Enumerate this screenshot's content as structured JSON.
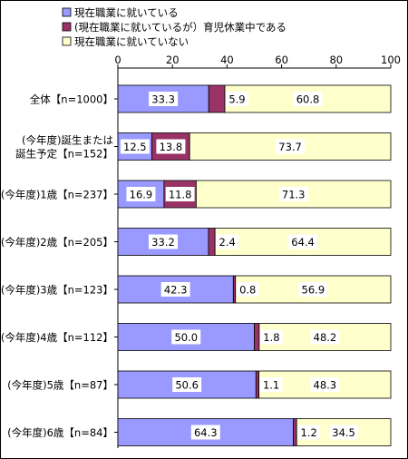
{
  "chart_data": {
    "type": "bar",
    "stacked": true,
    "orientation": "horizontal",
    "xlim": [
      0,
      100
    ],
    "x_ticks": [
      "0",
      "20",
      "40",
      "60",
      "80",
      "100"
    ],
    "categories": [
      "全体【n=1000】",
      "(今年度)誕生または\n誕生予定【n=152】",
      "(今年度)1歳【n=237】",
      "(今年度)2歳【n=205】",
      "(今年度)3歳【n=123】",
      "(今年度)4歳【n=112】",
      "(今年度)5歳【n=87】",
      "(今年度)6歳【n=84】"
    ],
    "series": [
      {
        "name": "現在職業に就いている",
        "color": "#9999ff",
        "values": [
          33.3,
          12.5,
          16.9,
          33.2,
          42.3,
          50.0,
          50.6,
          64.3
        ],
        "labels": [
          "33.3",
          "12.5",
          "16.9",
          "33.2",
          "42.3",
          "50.0",
          "50.6",
          "64.3"
        ]
      },
      {
        "name": "(現在職業に就いているが）育児休業中である",
        "color": "#993366",
        "values": [
          5.9,
          13.8,
          11.8,
          2.4,
          0.8,
          1.8,
          1.1,
          1.2
        ],
        "labels": [
          "5.9",
          "13.8",
          "11.8",
          "2.4",
          "0.8",
          "1.8",
          "1.1",
          "1.2"
        ]
      },
      {
        "name": "現在職業に就いていない",
        "color": "#ffffcc",
        "values": [
          60.8,
          73.7,
          71.3,
          64.4,
          56.9,
          48.2,
          48.3,
          34.5
        ],
        "labels": [
          "60.8",
          "73.7",
          "71.3",
          "64.4",
          "56.9",
          "48.2",
          "48.3",
          "34.5"
        ]
      }
    ],
    "grid": false,
    "legend_position": "top"
  }
}
